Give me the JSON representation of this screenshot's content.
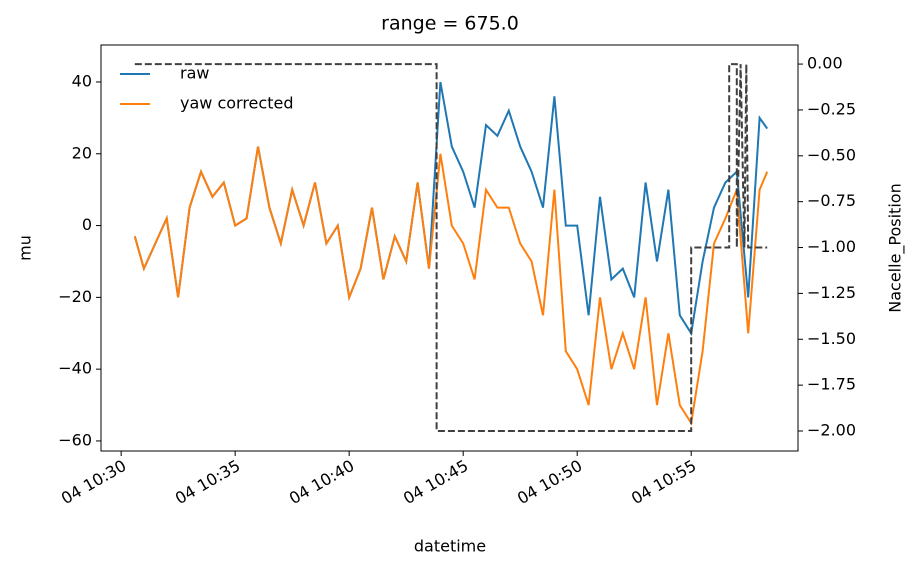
{
  "chart_data": {
    "type": "line",
    "title": "range = 675.0",
    "xlabel": "datetime",
    "ylabel": "mu",
    "y2label": "Nacelle_Position",
    "xlim": [
      "04 10:29:07",
      "04 10:59:41"
    ],
    "xticks": [
      {
        "value": "04 10:30:00",
        "label": "04 10:30"
      },
      {
        "value": "04 10:35:00",
        "label": "04 10:35"
      },
      {
        "value": "04 10:40:00",
        "label": "04 10:40"
      },
      {
        "value": "04 10:45:00",
        "label": "04 10:45"
      },
      {
        "value": "04 10:50:00",
        "label": "04 10:50"
      },
      {
        "value": "04 10:55:00",
        "label": "04 10:55"
      }
    ],
    "ylim": [
      -62.8,
      50.3
    ],
    "yticks": [
      {
        "value": -60,
        "label": "−60"
      },
      {
        "value": -40,
        "label": "−40"
      },
      {
        "value": -20,
        "label": "−20"
      },
      0,
      20,
      40
    ],
    "y2lim": [
      -2.109,
      0.104
    ],
    "y2ticks": [
      {
        "value": -2,
        "label": "−2.00"
      },
      {
        "value": -1.75,
        "label": "−1.75"
      },
      {
        "value": -1.5,
        "label": "−1.50"
      },
      {
        "value": -1.25,
        "label": "−1.25"
      },
      {
        "value": -1,
        "label": "−1.00"
      },
      {
        "value": -0.75,
        "label": "−0.75"
      },
      {
        "value": -0.5,
        "label": "−0.50"
      },
      {
        "value": -0.25,
        "label": "−0.25"
      },
      {
        "value": 0,
        "label": "0.00"
      }
    ],
    "legend": "upper left",
    "x": [
      "04 10:30:36",
      "04 10:31:00",
      "04 10:31:30",
      "04 10:32:00",
      "04 10:32:30",
      "04 10:33:00",
      "04 10:33:30",
      "04 10:34:00",
      "04 10:34:30",
      "04 10:35:00",
      "04 10:35:30",
      "04 10:36:00",
      "04 10:36:30",
      "04 10:37:00",
      "04 10:37:30",
      "04 10:38:00",
      "04 10:38:30",
      "04 10:39:00",
      "04 10:39:30",
      "04 10:40:00",
      "04 10:40:30",
      "04 10:41:00",
      "04 10:41:30",
      "04 10:42:00",
      "04 10:42:30",
      "04 10:43:00",
      "04 10:43:30",
      "04 10:44:00",
      "04 10:44:30",
      "04 10:45:00",
      "04 10:45:30",
      "04 10:46:00",
      "04 10:46:30",
      "04 10:47:00",
      "04 10:47:30",
      "04 10:48:00",
      "04 10:48:30",
      "04 10:49:00",
      "04 10:49:30",
      "04 10:50:00",
      "04 10:50:30",
      "04 10:51:00",
      "04 10:51:30",
      "04 10:52:00",
      "04 10:52:30",
      "04 10:53:00",
      "04 10:53:30",
      "04 10:54:00",
      "04 10:54:30",
      "04 10:55:00",
      "04 10:55:30",
      "04 10:56:00",
      "04 10:56:30",
      "04 10:57:00",
      "04 10:57:30",
      "04 10:58:00",
      "04 10:58:20"
    ],
    "series": [
      {
        "name": "raw",
        "color": "#1f77b4",
        "values": [
          -3,
          -12,
          -5,
          2,
          -20,
          5,
          15,
          8,
          12,
          0,
          2,
          22,
          5,
          -5,
          10,
          0,
          12,
          -5,
          0,
          -20,
          -12,
          5,
          -15,
          -3,
          -10,
          12,
          -12,
          40,
          22,
          15,
          5,
          28,
          25,
          32,
          22,
          15,
          5,
          36,
          0,
          0,
          -25,
          8,
          -15,
          -12,
          -20,
          12,
          -10,
          10,
          -25,
          -30,
          -10,
          5,
          12,
          15,
          -20,
          30,
          27
        ]
      },
      {
        "name": "yaw corrected",
        "color": "#ff7f0e",
        "values": [
          -3,
          -12,
          -5,
          2,
          -20,
          5,
          15,
          8,
          12,
          0,
          2,
          22,
          5,
          -5,
          10,
          0,
          12,
          -5,
          0,
          -20,
          -12,
          5,
          -15,
          -3,
          -10,
          12,
          -12,
          20,
          0,
          -5,
          -15,
          10,
          5,
          5,
          -5,
          -10,
          -25,
          10,
          -35,
          -40,
          -50,
          -20,
          -40,
          -30,
          -40,
          -20,
          -50,
          -30,
          -50,
          -55,
          -35,
          -5,
          2,
          10,
          -30,
          10,
          15
        ]
      },
      {
        "color": "#404040",
        "axis": "y2",
        "dashed": true,
        "x": [
          "04 10:30:36",
          "04 10:43:50",
          "04 10:43:50",
          "04 10:55:00",
          "04 10:55:00",
          "04 10:56:40",
          "04 10:56:40",
          "04 10:57:00",
          "04 10:57:00",
          "04 10:57:10",
          "04 10:57:20",
          "04 10:57:25",
          "04 10:57:30",
          "04 10:58:20"
        ],
        "values": [
          0,
          0,
          -2,
          -2,
          -1,
          -1,
          0,
          0,
          -1,
          0,
          -1,
          0,
          -1,
          -1
        ]
      }
    ]
  }
}
